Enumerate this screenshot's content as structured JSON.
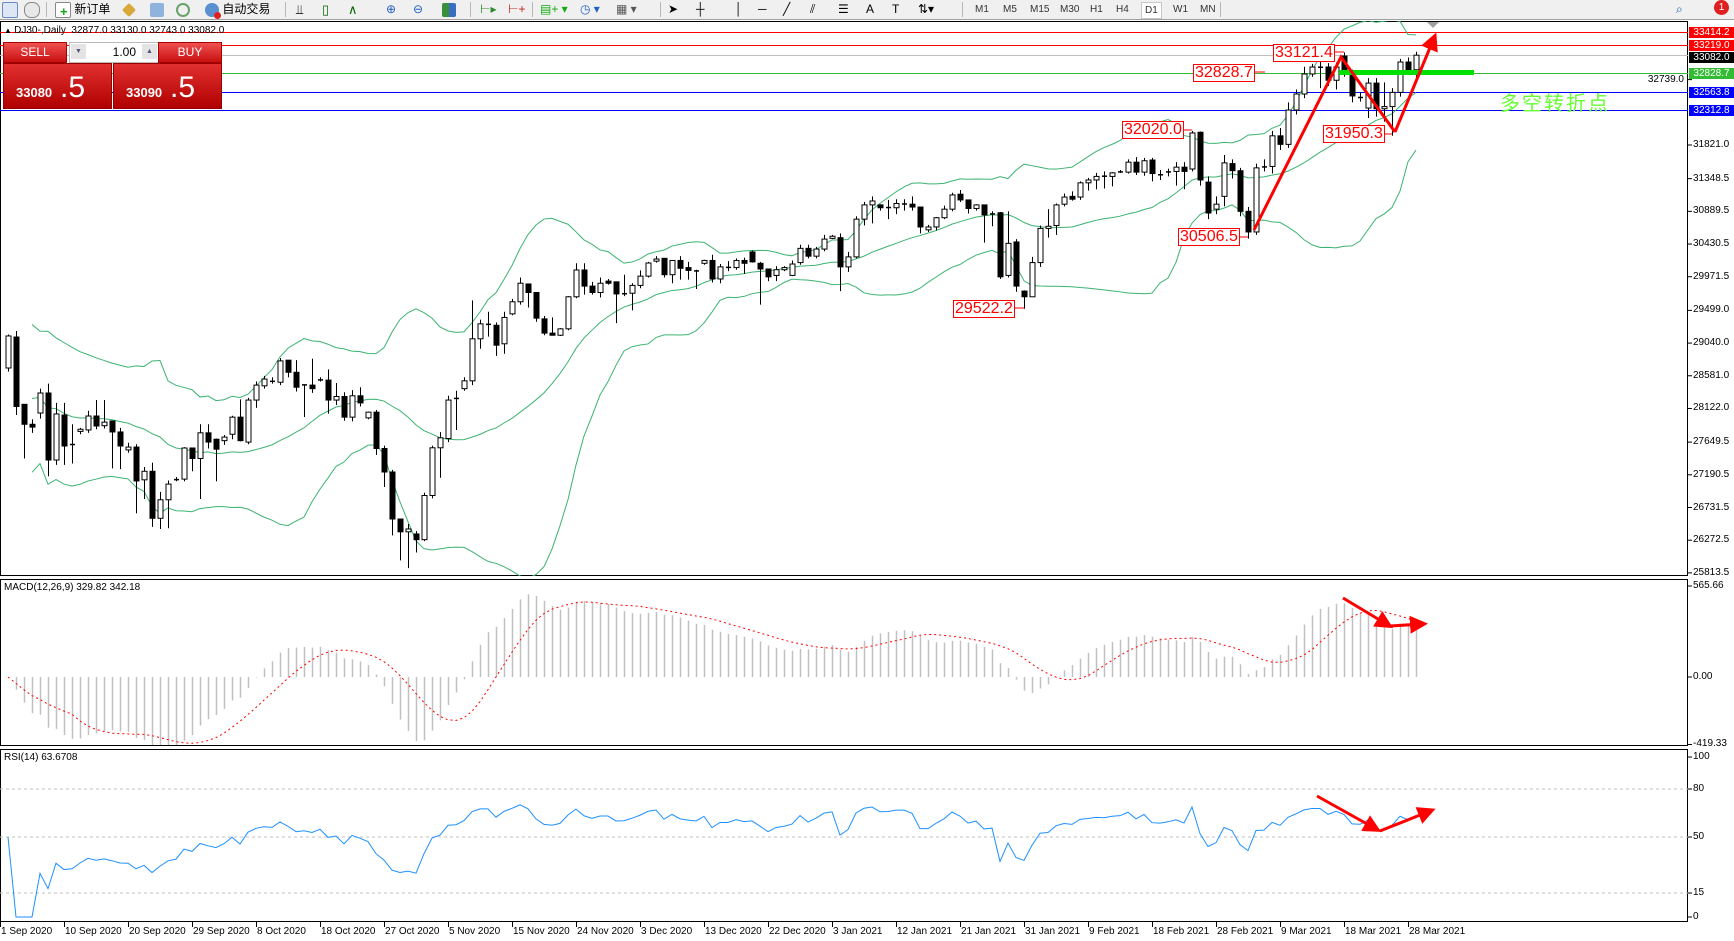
{
  "toolbar": {
    "new_order": "新订单",
    "auto_trading": "自动交易",
    "timeframes": [
      "M1",
      "M5",
      "M15",
      "M30",
      "H1",
      "H4",
      "D1",
      "W1",
      "MN"
    ],
    "active_timeframe": "D1",
    "notification_count": "1"
  },
  "chart": {
    "header": "DJ30-,Daily  32877.0 33130.0 32743.0 33082.0",
    "note_text": "多空转折点",
    "price_axis": [
      "31821.0",
      "31348.5",
      "30889.5",
      "30430.5",
      "29971.5",
      "29499.0",
      "29040.0",
      "28581.0",
      "28122.0",
      "27649.5",
      "27190.5",
      "26731.5",
      "26272.5",
      "25813.5",
      "32739.0"
    ],
    "levels": [
      {
        "label": "33414.2",
        "price": 33414.2,
        "color": "#ff0000"
      },
      {
        "label": "33219.0",
        "price": 33219.0,
        "color": "#ff0000"
      },
      {
        "label": "33082.0",
        "price": 33082.0,
        "color": "#000000",
        "line_color": "#c0c0c0"
      },
      {
        "label": "32828.7",
        "price": 32828.7,
        "color": "#33bb33"
      },
      {
        "label": "32563.8",
        "price": 32563.8,
        "color": "#0000ff"
      },
      {
        "label": "32312.8",
        "price": 32312.8,
        "color": "#0000ff"
      }
    ],
    "annotations": [
      "33121.4",
      "32828.7",
      "32020.0",
      "31950.3",
      "30506.5",
      "29522.2"
    ]
  },
  "trade_panel": {
    "sell_label": "SELL",
    "buy_label": "BUY",
    "lot": "1.00",
    "sell_price_main": "33080",
    "sell_price_frac": ".5",
    "buy_price_main": "33090",
    "buy_price_frac": ".5"
  },
  "macd": {
    "title": "MACD(12,26,9) 329.82 342.18",
    "axis": [
      "565.66",
      "0.00",
      "-419.33"
    ]
  },
  "rsi": {
    "title": "RSI(14) 63.6708",
    "axis": [
      "100",
      "80",
      "50",
      "15",
      "0"
    ]
  },
  "dates": [
    "1 Sep 2020",
    "10 Sep 2020",
    "20 Sep 2020",
    "29 Sep 2020",
    "8 Oct 2020",
    "18 Oct 2020",
    "27 Oct 2020",
    "5 Nov 2020",
    "15 Nov 2020",
    "24 Nov 2020",
    "3 Dec 2020",
    "13 Dec 2020",
    "22 Dec 2020",
    "3 Jan 2021",
    "12 Jan 2021",
    "21 Jan 2021",
    "31 Jan 2021",
    "9 Feb 2021",
    "18 Feb 2021",
    "28 Feb 2021",
    "9 Mar 2021",
    "18 Mar 2021",
    "28 Mar 2021"
  ],
  "colors": {
    "bands": "#3cb371",
    "macd_hist": "#c0c0c0",
    "macd_signal": "#ff0000",
    "rsi": "#1e90ff",
    "arrows": "#ff0000",
    "pivot_line": "#00e000"
  },
  "chart_data": {
    "type": "candlestick",
    "symbol": "DJ30-",
    "timeframe": "Daily",
    "ylim": [
      25813.5,
      33414.2
    ],
    "indicators": [
      "Bollinger Bands(20,2)",
      "MACD(12,26,9)",
      "RSI(14)"
    ],
    "ohlc": [
      [
        28690,
        29160,
        28640,
        29140
      ],
      [
        29125,
        29210,
        28030,
        28150
      ],
      [
        28180,
        28180,
        27420,
        27900
      ],
      [
        27900,
        27970,
        27780,
        27860
      ],
      [
        28058,
        28400,
        27980,
        28339
      ],
      [
        28339,
        28470,
        27170,
        27398
      ],
      [
        27398,
        28200,
        27330,
        28045
      ],
      [
        28030,
        28200,
        27330,
        27595
      ],
      [
        27620,
        27900,
        27350,
        27623
      ],
      [
        27800,
        27850,
        27760,
        27830
      ],
      [
        27820,
        28090,
        27780,
        28016
      ],
      [
        28016,
        28240,
        27830,
        27876
      ],
      [
        27880,
        28240,
        27840,
        27930
      ],
      [
        27946,
        27950,
        27280,
        27792
      ],
      [
        27792,
        27850,
        27270,
        27595
      ],
      [
        27540,
        27640,
        27500,
        27580
      ],
      [
        27580,
        27620,
        26650,
        27104
      ],
      [
        27120,
        27300,
        26850,
        27240
      ],
      [
        27240,
        27360,
        26460,
        26580
      ],
      [
        26580,
        26950,
        26430,
        26840
      ],
      [
        26840,
        27110,
        26440,
        27060
      ],
      [
        27130,
        27160,
        27100,
        27130
      ],
      [
        27130,
        27580,
        27100,
        27567
      ],
      [
        27567,
        27570,
        27240,
        27420
      ],
      [
        27420,
        27900,
        26850,
        27780
      ],
      [
        27780,
        27900,
        27560,
        27650
      ],
      [
        27690,
        27700,
        27100,
        27550
      ],
      [
        27670,
        27750,
        27610,
        27720
      ],
      [
        27760,
        28020,
        27690,
        28000
      ],
      [
        28000,
        28250,
        27660,
        27670
      ],
      [
        27650,
        28270,
        27620,
        28240
      ],
      [
        28240,
        28500,
        28130,
        28450
      ],
      [
        28440,
        28580,
        28400,
        28535
      ],
      [
        28510,
        28560,
        28470,
        28510
      ],
      [
        28490,
        28830,
        28450,
        28790
      ],
      [
        28800,
        28800,
        28560,
        28630
      ],
      [
        28630,
        28800,
        28360,
        28420
      ],
      [
        28460,
        28460,
        28000,
        28460
      ],
      [
        28450,
        28820,
        28340,
        28400
      ],
      [
        28530,
        28560,
        28500,
        28530
      ],
      [
        28520,
        28670,
        28050,
        28240
      ],
      [
        28240,
        28480,
        28170,
        28290
      ],
      [
        28290,
        28350,
        27950,
        28000
      ],
      [
        28000,
        28380,
        27940,
        28300
      ],
      [
        28300,
        28420,
        28150,
        28200
      ],
      [
        27990,
        28080,
        27970,
        28070
      ],
      [
        28070,
        28100,
        27470,
        27560
      ],
      [
        27560,
        27600,
        27020,
        27230
      ],
      [
        27230,
        27260,
        26340,
        26570
      ],
      [
        26570,
        26570,
        25990,
        26390
      ],
      [
        26390,
        26500,
        25880,
        26430
      ],
      [
        26360,
        26400,
        26100,
        26280
      ],
      [
        26280,
        26940,
        26260,
        26900
      ],
      [
        26900,
        27600,
        26860,
        27570
      ],
      [
        27570,
        27790,
        27150,
        27710
      ],
      [
        27700,
        28300,
        27650,
        28240
      ],
      [
        28270,
        28370,
        27820,
        28270
      ],
      [
        28400,
        28560,
        28370,
        28510
      ],
      [
        28510,
        29640,
        28450,
        29100
      ],
      [
        29100,
        29370,
        28960,
        29310
      ],
      [
        29310,
        29480,
        29130,
        29310
      ],
      [
        29290,
        29330,
        28860,
        29010
      ],
      [
        29030,
        29480,
        28890,
        29400
      ],
      [
        29450,
        29660,
        29430,
        29620
      ],
      [
        29620,
        29960,
        29580,
        29880
      ],
      [
        29870,
        29870,
        29540,
        29750
      ],
      [
        29750,
        29750,
        29340,
        29390
      ],
      [
        29380,
        29420,
        29150,
        29180
      ],
      [
        29180,
        29400,
        29150,
        29150
      ],
      [
        29150,
        29250,
        29140,
        29240
      ],
      [
        29240,
        29700,
        29220,
        29690
      ],
      [
        29690,
        30160,
        29670,
        30066
      ],
      [
        30066,
        30160,
        29720,
        29840
      ],
      [
        29840,
        29900,
        29720,
        29750
      ],
      [
        29750,
        29960,
        29680,
        29880
      ],
      [
        29910,
        29940,
        29860,
        29880
      ],
      [
        29900,
        29900,
        29320,
        29730
      ],
      [
        29740,
        30000,
        29700,
        29740
      ],
      [
        29740,
        29880,
        29500,
        29850
      ],
      [
        29850,
        30060,
        29810,
        29980
      ],
      [
        29980,
        30180,
        29960,
        30164
      ],
      [
        30190,
        30260,
        30170,
        30220
      ],
      [
        30230,
        30230,
        29960,
        30000
      ],
      [
        30000,
        30200,
        29880,
        30200
      ],
      [
        30200,
        30260,
        29930,
        30090
      ],
      [
        30100,
        30180,
        29930,
        30060
      ],
      [
        30060,
        30070,
        29800,
        30040
      ],
      [
        30160,
        30210,
        30140,
        30200
      ],
      [
        30200,
        30280,
        29890,
        29940
      ],
      [
        29940,
        30150,
        29880,
        30110
      ],
      [
        30110,
        30190,
        30050,
        30110
      ],
      [
        30100,
        30230,
        30070,
        30200
      ],
      [
        30200,
        30240,
        30010,
        30160
      ],
      [
        30320,
        30340,
        30170,
        30180
      ],
      [
        30160,
        30180,
        29580,
        30080
      ],
      [
        30080,
        30080,
        29910,
        29970
      ],
      [
        29990,
        30120,
        29910,
        30070
      ],
      [
        30070,
        30120,
        30050,
        30100
      ],
      [
        29990,
        30200,
        29980,
        30150
      ],
      [
        30170,
        30420,
        30140,
        30370
      ],
      [
        30370,
        30420,
        30230,
        30260
      ],
      [
        30260,
        30390,
        30230,
        30360
      ],
      [
        30360,
        30560,
        30330,
        30500
      ],
      [
        30510,
        30560,
        30500,
        30540
      ],
      [
        30520,
        30580,
        29770,
        30110
      ],
      [
        30110,
        30320,
        30040,
        30250
      ],
      [
        30250,
        30820,
        30230,
        30780
      ],
      [
        30780,
        31020,
        30690,
        30980
      ],
      [
        30980,
        31100,
        30720,
        31035
      ],
      [
        30980,
        30990,
        30900,
        30940
      ],
      [
        30950,
        31050,
        30780,
        30950
      ],
      [
        30940,
        31060,
        30850,
        31000
      ],
      [
        31000,
        31060,
        30900,
        31000
      ],
      [
        30990,
        31100,
        30900,
        30950
      ],
      [
        30950,
        30950,
        30580,
        30670
      ],
      [
        30630,
        30700,
        30600,
        30670
      ],
      [
        30670,
        30810,
        30620,
        30800
      ],
      [
        30800,
        30970,
        30780,
        30920
      ],
      [
        30920,
        31150,
        30890,
        31120
      ],
      [
        31130,
        31190,
        31020,
        31050
      ],
      [
        31050,
        31050,
        30860,
        30930
      ],
      [
        30930,
        30990,
        30900,
        30980
      ],
      [
        30980,
        30980,
        30450,
        30840
      ],
      [
        30860,
        30890,
        30680,
        30860
      ],
      [
        30870,
        30880,
        29940,
        29970
      ],
      [
        29990,
        30890,
        29960,
        30440
      ],
      [
        30460,
        30500,
        29760,
        29840
      ],
      [
        29770,
        29780,
        29522.2,
        29690
      ],
      [
        29690,
        30250,
        29690,
        30170
      ],
      [
        30170,
        30690,
        30110,
        30650
      ],
      [
        30650,
        30920,
        30520,
        30680
      ],
      [
        30690,
        31000,
        30560,
        30980
      ],
      [
        30990,
        31140,
        30960,
        31090
      ],
      [
        31100,
        31170,
        31040,
        31060
      ],
      [
        31090,
        31310,
        31050,
        31290
      ],
      [
        31290,
        31360,
        31180,
        31330
      ],
      [
        31330,
        31430,
        31200,
        31380
      ],
      [
        31390,
        31450,
        31210,
        31370
      ],
      [
        31380,
        31440,
        31240,
        31430
      ],
      [
        31450,
        31470,
        31430,
        31450
      ],
      [
        31440,
        31620,
        31420,
        31580
      ],
      [
        31580,
        31650,
        31400,
        31440
      ],
      [
        31440,
        31640,
        31390,
        31600
      ],
      [
        31610,
        31640,
        31310,
        31420
      ],
      [
        31410,
        31470,
        31330,
        31410
      ],
      [
        31450,
        31490,
        31380,
        31450
      ],
      [
        31450,
        31580,
        31250,
        31510
      ],
      [
        31510,
        31580,
        31200,
        31450
      ],
      [
        31484,
        32020,
        31450,
        31990
      ],
      [
        32000,
        32010,
        31250,
        31330
      ],
      [
        31300,
        31380,
        30780,
        30866
      ],
      [
        30920,
        31100,
        30850,
        30990
      ],
      [
        31100,
        31680,
        30960,
        31570
      ],
      [
        31560,
        31620,
        31350,
        31460
      ],
      [
        31460,
        31500,
        30820,
        30890
      ],
      [
        30890,
        30950,
        30506.5,
        30600
      ],
      [
        30600,
        31560,
        30560,
        31500
      ],
      [
        31500,
        31620,
        31450,
        31520
      ],
      [
        31520,
        32020,
        31420,
        31950
      ],
      [
        31950,
        32060,
        31750,
        31830
      ],
      [
        31830,
        32420,
        31780,
        32312
      ],
      [
        32312,
        32600,
        32250,
        32537
      ],
      [
        32537,
        32920,
        32480,
        32818
      ],
      [
        32818,
        32960,
        32780,
        32916
      ],
      [
        32910,
        33010,
        32620,
        32920
      ],
      [
        32916,
        32970,
        32650,
        32730
      ],
      [
        32730,
        32980,
        32600,
        32916
      ],
      [
        33070,
        33121.4,
        32780,
        32820
      ],
      [
        32820,
        32880,
        32420,
        32510
      ],
      [
        32490,
        32560,
        32430,
        32495
      ],
      [
        32340,
        32760,
        32200,
        32690
      ],
      [
        32690,
        32760,
        32220,
        32330
      ],
      [
        32330,
        32700,
        32150,
        32360
      ],
      [
        32360,
        32620,
        31950.3,
        32560
      ],
      [
        32560,
        33030,
        32500,
        32986
      ],
      [
        32986,
        33050,
        32850,
        32880
      ],
      [
        32877,
        33130,
        32743,
        33082
      ]
    ]
  }
}
